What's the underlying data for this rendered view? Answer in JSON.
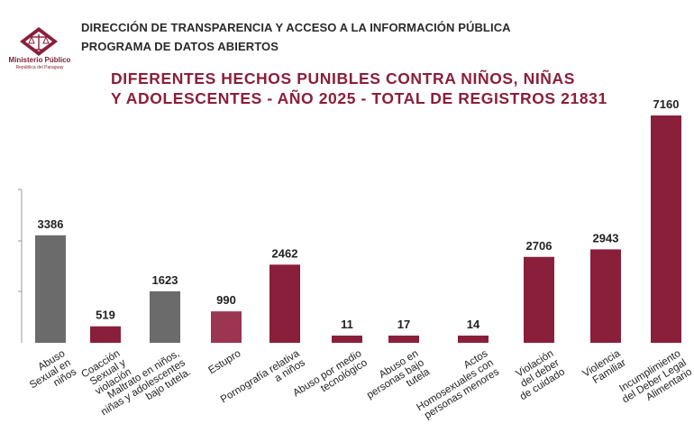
{
  "header": {
    "organization": "Ministerio Público",
    "organization_sub": "República del Paraguay",
    "line1": "DIRECCIÓN DE TRANSPARENCIA Y ACCESO A LA INFORMACIÓN PÚBLICA",
    "line2": "PROGRAMA DE DATOS ABIERTOS",
    "logo_icon": "scales-of-justice-icon"
  },
  "chart_data": {
    "type": "bar",
    "title_line1": "DIFERENTES HECHOS PUNIBLES CONTRA NIÑOS, NIÑAS",
    "title_line2": "Y ADOLESCENTES -  AÑO 2025 - TOTAL DE REGISTROS  21831",
    "xlabel": "",
    "ylabel": "",
    "grid": false,
    "categories": [
      [
        "Abuso",
        "Sexual en",
        "niños"
      ],
      [
        "Coacción",
        "Sexual y",
        "violación"
      ],
      [
        "Maltrato en niños,",
        "niñas y adolescentes",
        "bajo tutela."
      ],
      [
        "Estupro"
      ],
      [
        "Pornografía relativa",
        "a niños"
      ],
      [
        "Abuso por medio",
        "tecnológico"
      ],
      [
        "Abuso en",
        "personas bajo",
        "tutela"
      ],
      [
        "Actos",
        "Homosexuales con",
        "personas menores"
      ],
      [
        "Violación",
        "del deber",
        "de cuidado"
      ],
      [
        "Violencia",
        "Familiar"
      ],
      [
        "Incumplimiento",
        "del Deber Legal",
        "Alimentario"
      ]
    ],
    "values": [
      3386,
      519,
      1623,
      990,
      2462,
      11,
      17,
      14,
      2706,
      2943,
      7160
    ],
    "colors": [
      "#6b6b6b",
      "#8a1f3b",
      "#6b6b6b",
      "#9b3552",
      "#8a1f3b",
      "#8a1f3b",
      "#8a1f3b",
      "#8a1f3b",
      "#8a1f3b",
      "#8a1f3b",
      "#8a1f3b"
    ],
    "ylim": [
      0,
      7160
    ]
  }
}
